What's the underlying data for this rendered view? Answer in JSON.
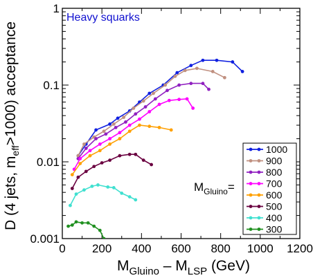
{
  "chart_data": {
    "type": "line",
    "yscale": "log",
    "xlim": [
      0,
      1200
    ],
    "ylim": [
      0.001,
      1
    ],
    "xticks": [
      "0",
      "200",
      "400",
      "600",
      "800",
      "1000",
      "1200"
    ],
    "yticks": [
      "0.001",
      "0.01",
      "0.1",
      "1"
    ],
    "annotation": "Heavy squarks",
    "legend_title": "M",
    "legend_title_sub": "Gluino",
    "legend_title_suffix": "=",
    "xlabel": {
      "m1": "M",
      "sub1": "Gluino",
      "mid": " – M",
      "sub2": "LSP",
      "tail": "  (GeV)"
    },
    "ylabel": {
      "pre": "D (4 jets, m",
      "sub": "eff",
      "post": ">1000) acceptance"
    },
    "legend_position": "bottom-right",
    "series": [
      {
        "name": "1000",
        "color": "#1020e0",
        "x": [
          80,
          120,
          170,
          240,
          280,
          340,
          390,
          440,
          510,
          580,
          650,
          710,
          780,
          860,
          910
        ],
        "y": [
          0.012,
          0.017,
          0.026,
          0.031,
          0.037,
          0.046,
          0.06,
          0.078,
          0.1,
          0.145,
          0.18,
          0.21,
          0.21,
          0.2,
          0.15
        ]
      },
      {
        "name": "900",
        "color": "#c09080",
        "x": [
          80,
          110,
          160,
          210,
          260,
          310,
          360,
          410,
          460,
          520,
          570,
          620,
          680,
          760,
          820
        ],
        "y": [
          0.012,
          0.017,
          0.021,
          0.025,
          0.031,
          0.038,
          0.05,
          0.062,
          0.078,
          0.1,
          0.13,
          0.155,
          0.165,
          0.15,
          0.125
        ]
      },
      {
        "name": "800",
        "color": "#9020c0",
        "x": [
          80,
          120,
          170,
          220,
          270,
          320,
          370,
          420,
          470,
          530,
          590,
          650,
          710,
          740
        ],
        "y": [
          0.011,
          0.015,
          0.02,
          0.023,
          0.028,
          0.033,
          0.042,
          0.052,
          0.066,
          0.085,
          0.1,
          0.105,
          0.105,
          0.088
        ]
      },
      {
        "name": "700",
        "color": "#ff00ff",
        "x": [
          60,
          90,
          140,
          190,
          240,
          290,
          340,
          390,
          440,
          490,
          540,
          590,
          630,
          660
        ],
        "y": [
          0.008,
          0.011,
          0.014,
          0.017,
          0.02,
          0.024,
          0.03,
          0.036,
          0.045,
          0.056,
          0.063,
          0.065,
          0.066,
          0.05
        ]
      },
      {
        "name": "600",
        "color": "#ffa000",
        "x": [
          50,
          90,
          140,
          190,
          240,
          290,
          340,
          390,
          440,
          490,
          550
        ],
        "y": [
          0.0068,
          0.0095,
          0.012,
          0.014,
          0.017,
          0.02,
          0.025,
          0.03,
          0.029,
          0.028,
          0.026
        ]
      },
      {
        "name": "500",
        "color": "#6a0040",
        "x": [
          50,
          80,
          120,
          160,
          200,
          240,
          290,
          340,
          370,
          410,
          450
        ],
        "y": [
          0.0045,
          0.0063,
          0.0075,
          0.0087,
          0.0097,
          0.0105,
          0.012,
          0.0125,
          0.0125,
          0.0105,
          0.0092
        ]
      },
      {
        "name": "400",
        "color": "#40e0d0",
        "x": [
          40,
          70,
          110,
          150,
          180,
          230,
          260,
          300,
          340,
          370
        ],
        "y": [
          0.0027,
          0.0038,
          0.0043,
          0.0048,
          0.005,
          0.0047,
          0.0046,
          0.0039,
          0.0035,
          0.0032
        ]
      },
      {
        "name": "300",
        "color": "#209020",
        "x": [
          30,
          50,
          70,
          100,
          130,
          160,
          190,
          210
        ],
        "y": [
          0.00145,
          0.0015,
          0.00165,
          0.0016,
          0.0016,
          0.00145,
          0.00128,
          0.001
        ]
      }
    ]
  }
}
